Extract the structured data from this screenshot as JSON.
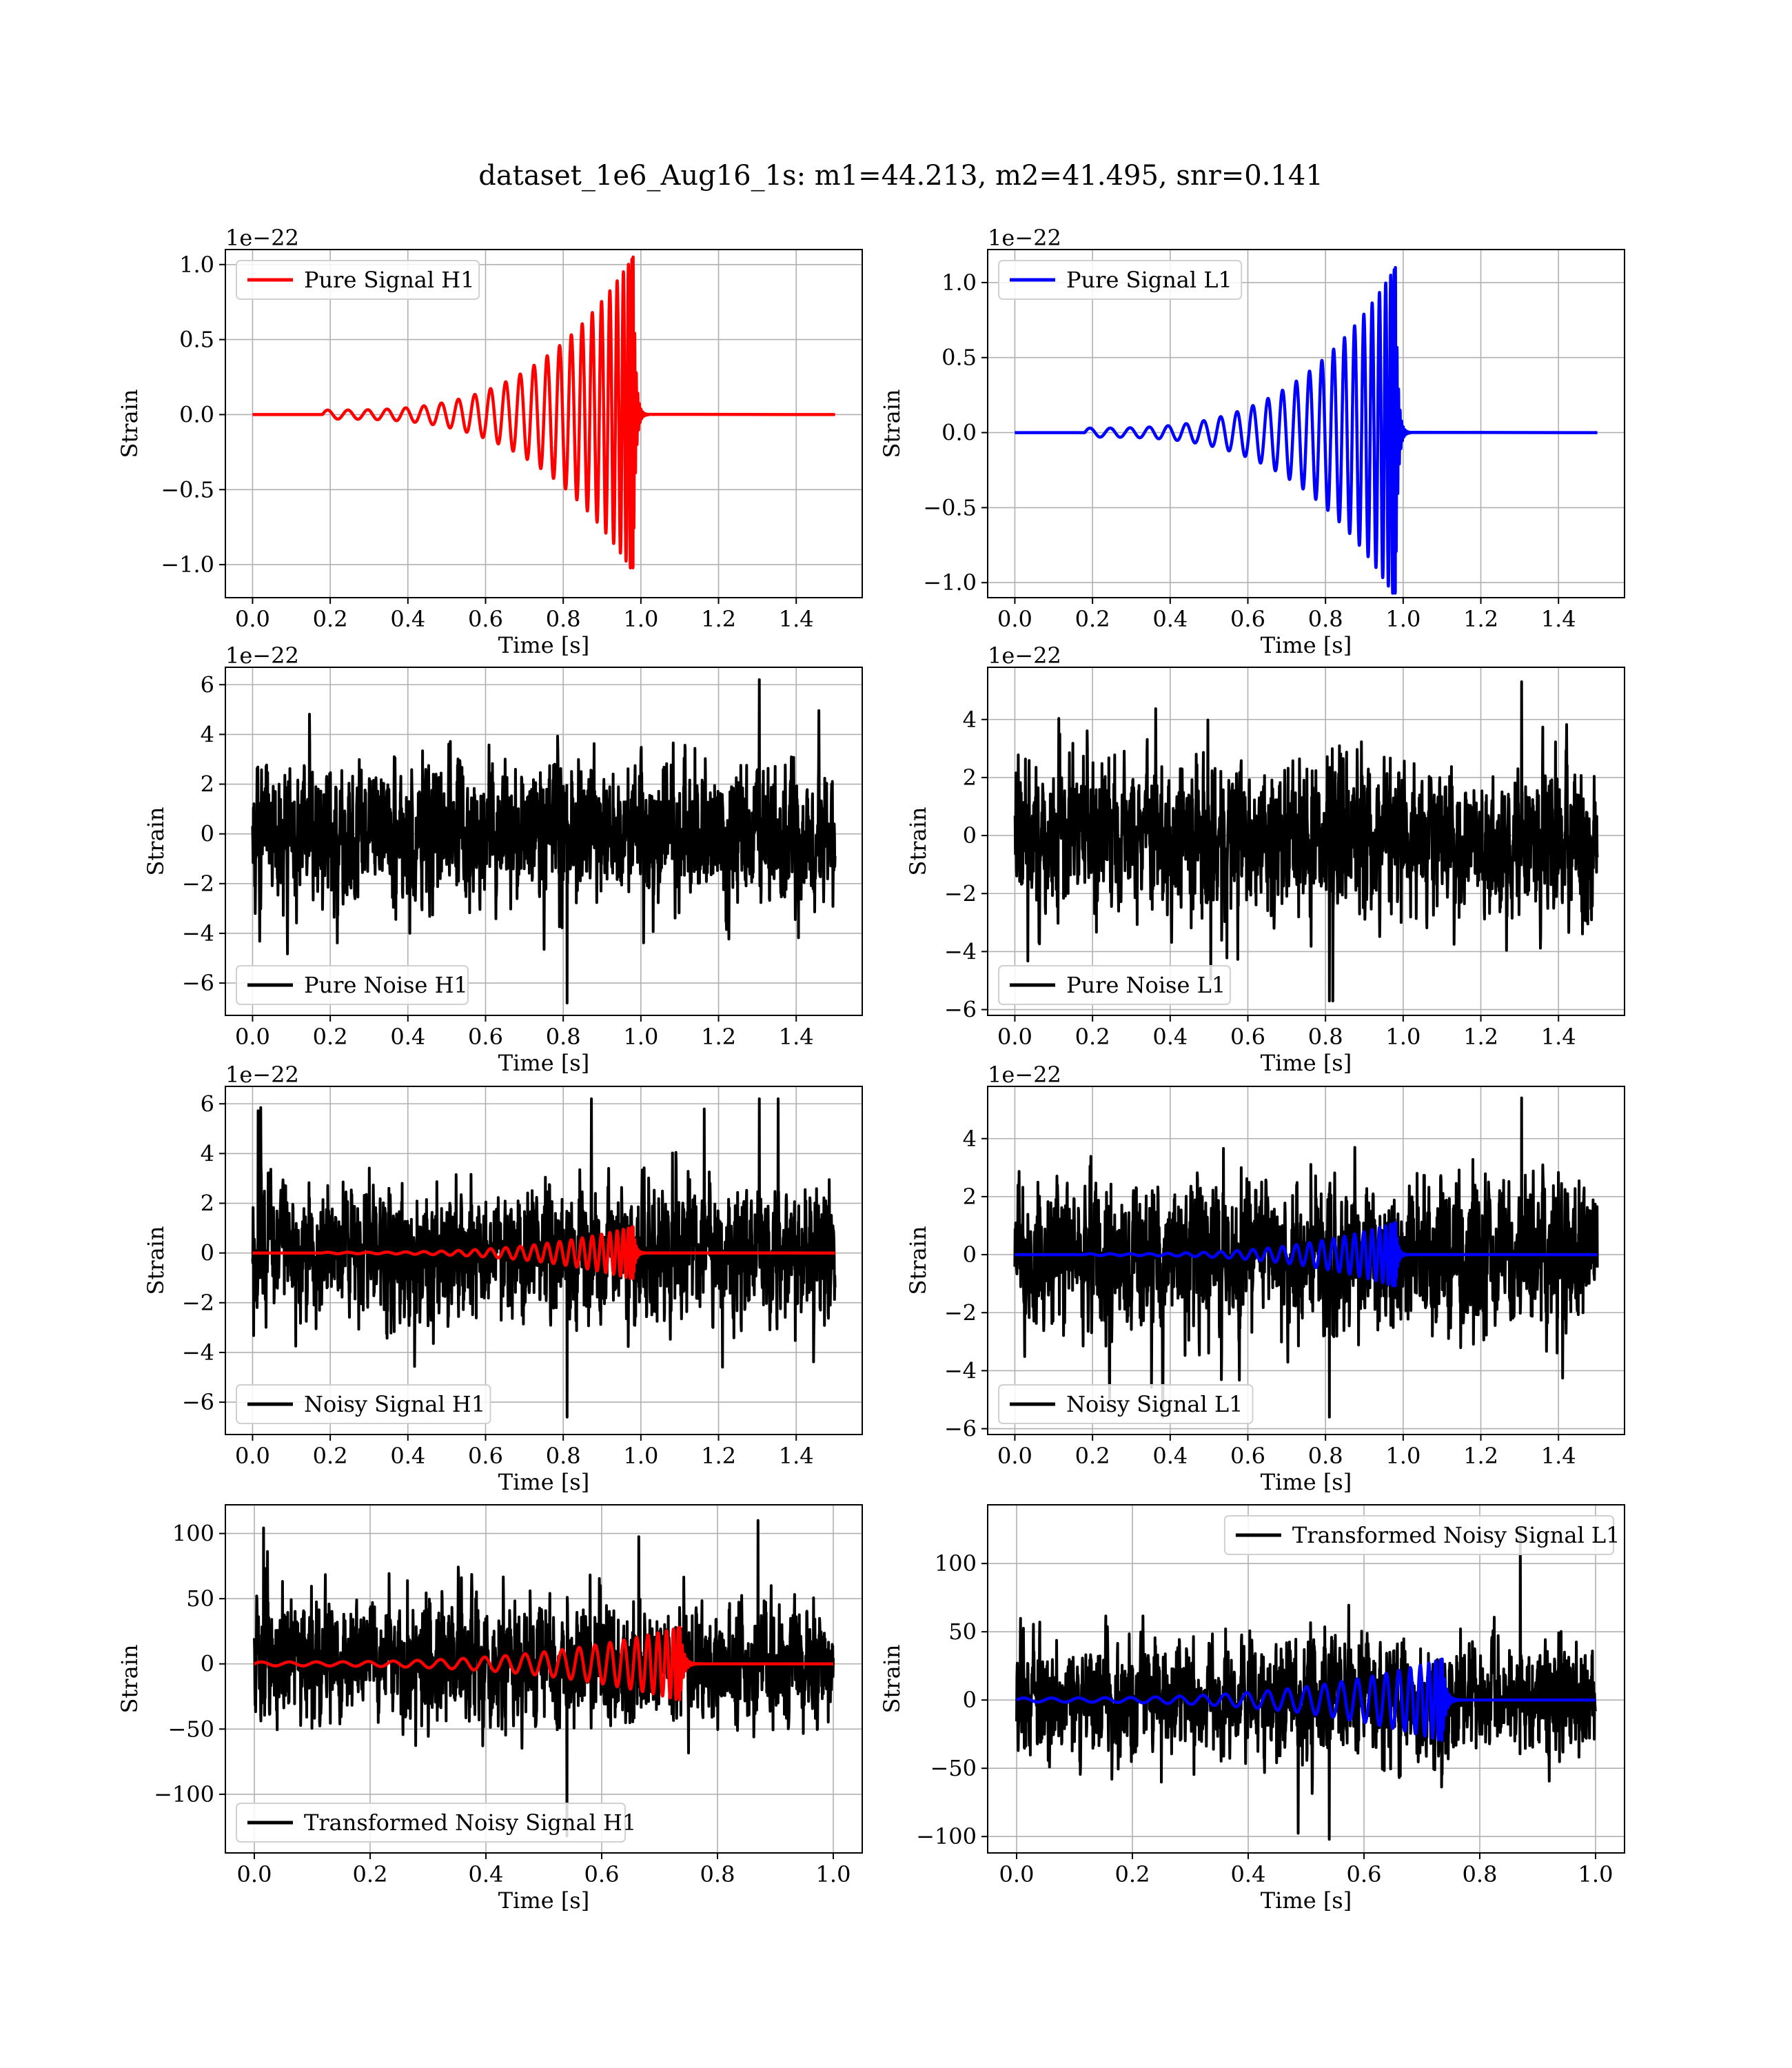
{
  "figure": {
    "title": "dataset_1e6_Aug16_1s: m1=44.213, m2=41.495, snr=0.141"
  },
  "chart_data": [
    {
      "type": "line",
      "detector": "H1",
      "kind": "pure_signal",
      "xlabel": "Time [s]",
      "ylabel": "Strain",
      "offset_text": "1e−22",
      "xlim": [
        -0.07,
        1.57
      ],
      "ylim": [
        -1.22,
        1.1
      ],
      "xticks": [
        "0.0",
        "0.2",
        "0.4",
        "0.6",
        "0.8",
        "1.0",
        "1.2",
        "1.4"
      ],
      "yticks": [
        "−1.0",
        "−0.5",
        "0.0",
        "0.5",
        "1.0"
      ],
      "grid": true,
      "legend": "upper-left",
      "series": [
        {
          "name": "Pure Signal H1",
          "color": "#ff0000",
          "waveform": {
            "t_start": 0.18,
            "t_merge": 0.98,
            "t_end": 1.5,
            "amp_start": 0.03,
            "amp_peak": 1.05,
            "cycles": 24
          }
        }
      ]
    },
    {
      "type": "line",
      "detector": "L1",
      "kind": "pure_signal",
      "xlabel": "Time [s]",
      "ylabel": "Strain",
      "offset_text": "1e−22",
      "xlim": [
        -0.07,
        1.57
      ],
      "ylim": [
        -1.1,
        1.22
      ],
      "xticks": [
        "0.0",
        "0.2",
        "0.4",
        "0.6",
        "0.8",
        "1.0",
        "1.2",
        "1.4"
      ],
      "yticks": [
        "−1.0",
        "−0.5",
        "0.0",
        "0.5",
        "1.0"
      ],
      "grid": true,
      "legend": "upper-left",
      "series": [
        {
          "name": "Pure Signal L1",
          "color": "#0000ff",
          "waveform": {
            "t_start": 0.18,
            "t_merge": 0.98,
            "t_end": 1.5,
            "amp_start": 0.03,
            "amp_peak": 1.1,
            "cycles": 24
          }
        }
      ]
    },
    {
      "type": "line",
      "detector": "H1",
      "kind": "pure_noise",
      "xlabel": "Time [s]",
      "ylabel": "Strain",
      "offset_text": "1e−22",
      "xlim": [
        -0.07,
        1.57
      ],
      "ylim": [
        -7.3,
        6.7
      ],
      "xticks": [
        "0.0",
        "0.2",
        "0.4",
        "0.6",
        "0.8",
        "1.0",
        "1.2",
        "1.4"
      ],
      "yticks": [
        "−6",
        "−4",
        "−2",
        "0",
        "2",
        "4",
        "6"
      ],
      "grid": true,
      "legend": "lower-left",
      "series": [
        {
          "name": "Pure Noise H1",
          "color": "#000000",
          "noise": {
            "t_start": 0.0,
            "t_end": 1.5,
            "sigma": 1.3,
            "max": 6.2,
            "min": -6.8
          }
        }
      ]
    },
    {
      "type": "line",
      "detector": "L1",
      "kind": "pure_noise",
      "xlabel": "Time [s]",
      "ylabel": "Strain",
      "offset_text": "1e−22",
      "xlim": [
        -0.07,
        1.57
      ],
      "ylim": [
        -6.2,
        5.8
      ],
      "xticks": [
        "0.0",
        "0.2",
        "0.4",
        "0.6",
        "0.8",
        "1.0",
        "1.2",
        "1.4"
      ],
      "yticks": [
        "−6",
        "−4",
        "−2",
        "0",
        "2",
        "4"
      ],
      "grid": true,
      "legend": "lower-left",
      "series": [
        {
          "name": "Pure Noise L1",
          "color": "#000000",
          "noise": {
            "t_start": 0.0,
            "t_end": 1.5,
            "sigma": 1.2,
            "max": 5.3,
            "min": -5.7
          }
        }
      ]
    },
    {
      "type": "line",
      "detector": "H1",
      "kind": "noisy_signal",
      "xlabel": "Time [s]",
      "ylabel": "Strain",
      "offset_text": "1e−22",
      "xlim": [
        -0.07,
        1.57
      ],
      "ylim": [
        -7.3,
        6.7
      ],
      "xticks": [
        "0.0",
        "0.2",
        "0.4",
        "0.6",
        "0.8",
        "1.0",
        "1.2",
        "1.4"
      ],
      "yticks": [
        "−6",
        "−4",
        "−2",
        "0",
        "2",
        "4",
        "6"
      ],
      "grid": true,
      "legend": "lower-left",
      "series": [
        {
          "name": "Noisy Signal H1",
          "color": "#000000",
          "noise": {
            "t_start": 0.0,
            "t_end": 1.5,
            "sigma": 1.3,
            "max": 6.2,
            "min": -6.6
          }
        },
        {
          "color": "#ff0000",
          "waveform": {
            "t_start": 0.18,
            "t_merge": 0.98,
            "t_end": 1.5,
            "amp_start": 0.03,
            "amp_peak": 1.05,
            "cycles": 24
          }
        }
      ]
    },
    {
      "type": "line",
      "detector": "L1",
      "kind": "noisy_signal",
      "xlabel": "Time [s]",
      "ylabel": "Strain",
      "offset_text": "1e−22",
      "xlim": [
        -0.07,
        1.57
      ],
      "ylim": [
        -6.2,
        5.8
      ],
      "xticks": [
        "0.0",
        "0.2",
        "0.4",
        "0.6",
        "0.8",
        "1.0",
        "1.2",
        "1.4"
      ],
      "yticks": [
        "−6",
        "−4",
        "−2",
        "0",
        "2",
        "4"
      ],
      "grid": true,
      "legend": "lower-left",
      "series": [
        {
          "name": "Noisy Signal L1",
          "color": "#000000",
          "noise": {
            "t_start": 0.0,
            "t_end": 1.5,
            "sigma": 1.2,
            "max": 5.4,
            "min": -5.6
          }
        },
        {
          "color": "#0000ff",
          "waveform": {
            "t_start": 0.18,
            "t_merge": 0.98,
            "t_end": 1.5,
            "amp_start": 0.03,
            "amp_peak": 1.1,
            "cycles": 24
          }
        }
      ]
    },
    {
      "type": "line",
      "detector": "H1",
      "kind": "transformed",
      "xlabel": "Time [s]",
      "ylabel": "Strain",
      "offset_text": "",
      "xlim": [
        -0.05,
        1.05
      ],
      "ylim": [
        -145,
        122
      ],
      "xticks": [
        "0.0",
        "0.2",
        "0.4",
        "0.6",
        "0.8",
        "1.0"
      ],
      "yticks": [
        "−100",
        "−50",
        "0",
        "50",
        "100"
      ],
      "grid": true,
      "legend": "lower-left",
      "series": [
        {
          "name": "Transformed Noisy Signal H1",
          "color": "#000000",
          "noise": {
            "t_start": 0.0,
            "t_end": 1.0,
            "sigma": 22,
            "max": 110,
            "min": -132
          }
        },
        {
          "color": "#ff0000",
          "waveform": {
            "t_start": 0.0,
            "t_merge": 0.735,
            "t_end": 1.0,
            "amp_start": 1.5,
            "amp_peak": 28,
            "cycles": 24
          }
        }
      ]
    },
    {
      "type": "line",
      "detector": "L1",
      "kind": "transformed",
      "xlabel": "Time [s]",
      "ylabel": "Strain",
      "offset_text": "",
      "xlim": [
        -0.05,
        1.05
      ],
      "ylim": [
        -112,
        143
      ],
      "xticks": [
        "0.0",
        "0.2",
        "0.4",
        "0.6",
        "0.8",
        "1.0"
      ],
      "yticks": [
        "−100",
        "−50",
        "0",
        "50",
        "100"
      ],
      "grid": true,
      "legend": "upper-right",
      "series": [
        {
          "name": "Transformed Noisy Signal L1",
          "color": "#000000",
          "noise": {
            "t_start": 0.0,
            "t_end": 1.0,
            "sigma": 20,
            "max": 126,
            "min": -102
          }
        },
        {
          "color": "#0000ff",
          "waveform": {
            "t_start": 0.0,
            "t_merge": 0.735,
            "t_end": 1.0,
            "amp_start": 1.5,
            "amp_peak": 30,
            "cycles": 24
          }
        }
      ]
    }
  ]
}
